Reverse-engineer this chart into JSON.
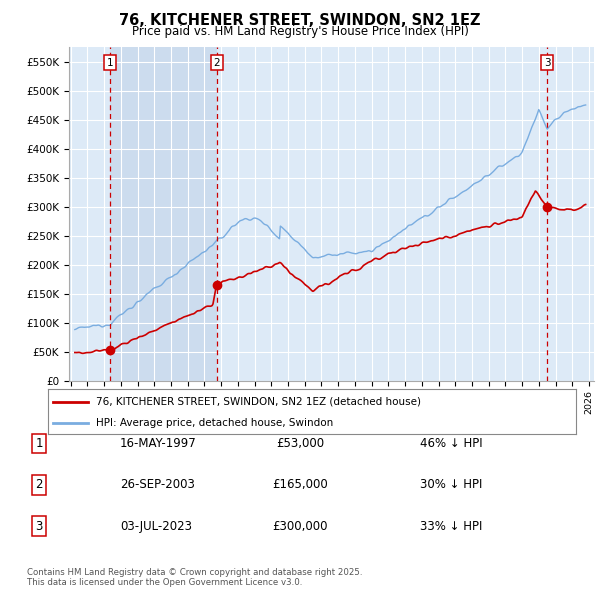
{
  "title": "76, KITCHENER STREET, SWINDON, SN2 1EZ",
  "subtitle": "Price paid vs. HM Land Registry's House Price Index (HPI)",
  "ylim": [
    0,
    575000
  ],
  "yticks": [
    0,
    50000,
    100000,
    150000,
    200000,
    250000,
    300000,
    350000,
    400000,
    450000,
    500000,
    550000
  ],
  "ytick_labels": [
    "£0",
    "£50K",
    "£100K",
    "£150K",
    "£200K",
    "£250K",
    "£300K",
    "£350K",
    "£400K",
    "£450K",
    "£500K",
    "£550K"
  ],
  "purchase_dates": [
    1997.37,
    2003.73,
    2023.5
  ],
  "purchase_prices": [
    53000,
    165000,
    300000
  ],
  "purchase_labels": [
    "1",
    "2",
    "3"
  ],
  "legend_line1": "76, KITCHENER STREET, SWINDON, SN2 1EZ (detached house)",
  "legend_line2": "HPI: Average price, detached house, Swindon",
  "table_data": [
    [
      "1",
      "16-MAY-1997",
      "£53,000",
      "46% ↓ HPI"
    ],
    [
      "2",
      "26-SEP-2003",
      "£165,000",
      "30% ↓ HPI"
    ],
    [
      "3",
      "03-JUL-2023",
      "£300,000",
      "33% ↓ HPI"
    ]
  ],
  "footnote": "Contains HM Land Registry data © Crown copyright and database right 2025.\nThis data is licensed under the Open Government Licence v3.0.",
  "red_color": "#cc0000",
  "blue_color": "#7aade0",
  "vline_color": "#cc0000",
  "dot_color": "#cc0000",
  "grid_color": "#ffffff",
  "plot_bg_color": "#ddeaf7",
  "shaded_bg_color": "#ccdcee"
}
